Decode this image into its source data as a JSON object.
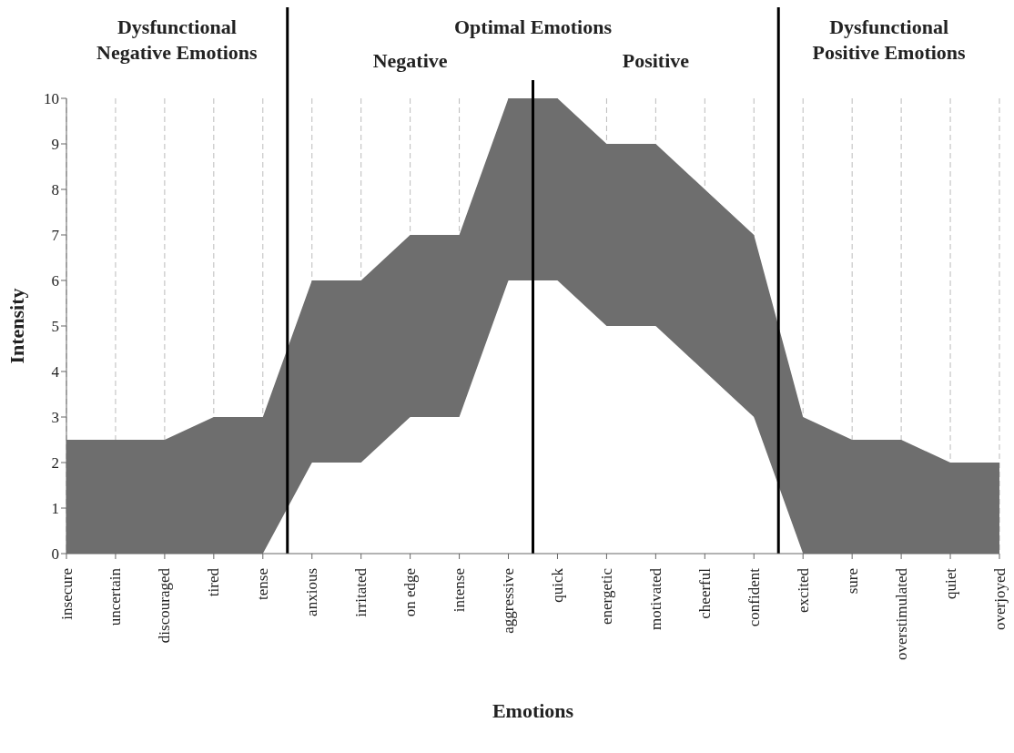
{
  "chart_data": {
    "type": "area",
    "xlabel": "Emotions",
    "ylabel": "Intensity",
    "categories": [
      "insecure",
      "uncertain",
      "discouraged",
      "tired",
      "tense",
      "anxious",
      "irritated",
      "on edge",
      "intense",
      "aggressive",
      "quick",
      "energetic",
      "motivated",
      "cheerful",
      "confident",
      "excited",
      "sure",
      "overstimulated",
      "quiet",
      "overjoyed"
    ],
    "stacked": true,
    "series": [
      {
        "color": "#ffffff",
        "values": [
          0,
          0,
          0,
          0,
          0,
          2,
          2,
          3,
          3,
          6,
          6,
          5,
          5,
          4,
          3,
          0,
          0,
          0,
          0,
          0
        ]
      },
      {
        "color": "#6e6e6e",
        "values": [
          2.5,
          2.5,
          2.5,
          3,
          3,
          4,
          4,
          4,
          4,
          4,
          4,
          4,
          4,
          4,
          4,
          3,
          2.5,
          2.5,
          2,
          2
        ]
      }
    ],
    "ylim": [
      0,
      10
    ],
    "yticks": [
      0,
      1,
      2,
      3,
      4,
      5,
      6,
      7,
      8,
      9,
      10
    ],
    "grid": "x",
    "annotations": [
      "Dysfunctional Negative Emotions",
      "Optimal Emotions",
      "Negative",
      "Positive",
      "Dysfunctional Positive Emotions"
    ],
    "legend": false
  }
}
